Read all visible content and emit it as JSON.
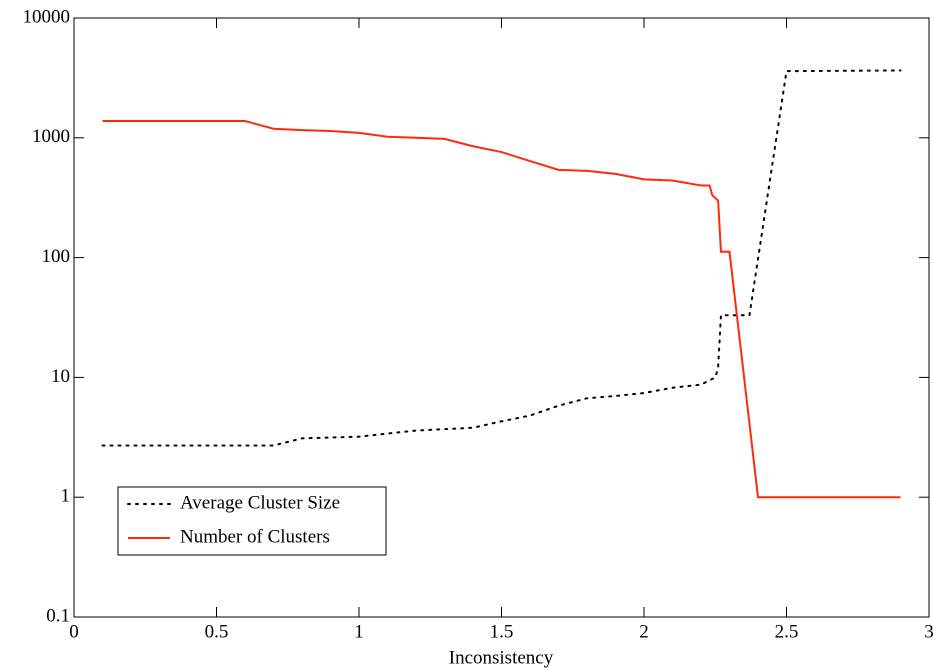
{
  "chart_data": {
    "type": "line",
    "x_label": "Inconsistency",
    "log_y": true,
    "xlim": [
      0,
      3
    ],
    "xticks": [
      0,
      0.5,
      1,
      1.5,
      2,
      2.5,
      3
    ],
    "ylim": [
      0.1,
      10000
    ],
    "yticks": [
      0.1,
      1,
      10,
      100,
      1000,
      10000
    ],
    "legend": "bottom-left",
    "series": [
      {
        "name": "Average Cluster Size",
        "color": "#000000",
        "dash": "dotted",
        "x": [
          0.1,
          0.7,
          0.8,
          1.0,
          1.1,
          1.2,
          1.3,
          1.4,
          1.5,
          1.6,
          1.7,
          1.8,
          1.9,
          2.0,
          2.1,
          2.2,
          2.25,
          2.26,
          2.27,
          2.37,
          2.5,
          2.9
        ],
        "values": [
          2.7,
          2.7,
          3.1,
          3.2,
          3.4,
          3.6,
          3.7,
          3.8,
          4.3,
          4.8,
          5.8,
          6.7,
          7.0,
          7.4,
          8.2,
          8.7,
          10,
          12,
          33,
          33,
          3600,
          3650
        ]
      },
      {
        "name": "Number of Clusters",
        "color": "#ff2a0a",
        "dash": "solid",
        "x": [
          0.1,
          0.6,
          0.7,
          0.8,
          0.9,
          1.0,
          1.1,
          1.2,
          1.3,
          1.4,
          1.5,
          1.6,
          1.7,
          1.8,
          1.9,
          2.0,
          2.1,
          2.2,
          2.23,
          2.24,
          2.26,
          2.27,
          2.3,
          2.4,
          2.9
        ],
        "values": [
          1380,
          1380,
          1190,
          1160,
          1140,
          1100,
          1020,
          1000,
          980,
          850,
          760,
          640,
          540,
          530,
          500,
          450,
          440,
          400,
          400,
          330,
          300,
          112,
          112,
          1,
          1
        ]
      }
    ]
  }
}
